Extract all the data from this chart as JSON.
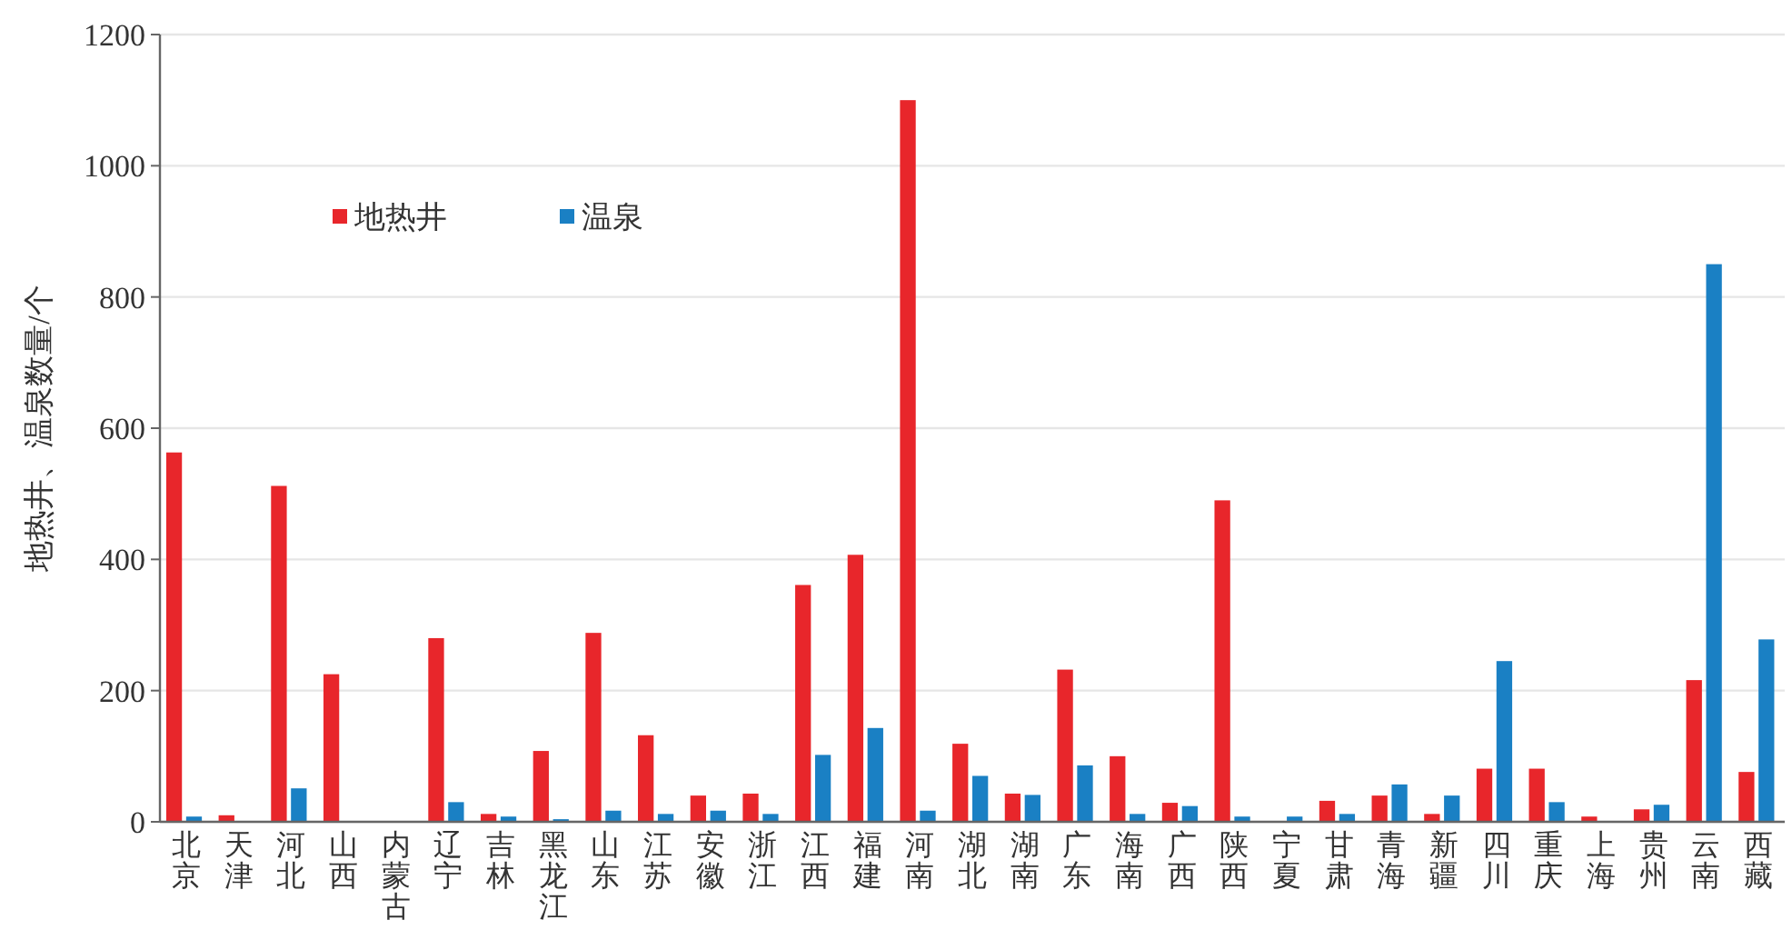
{
  "chart_data": {
    "type": "bar",
    "ylabel": "地热井、温泉数量/个",
    "categories": [
      "北京",
      "天津",
      "河北",
      "山西",
      "内蒙古",
      "辽宁",
      "吉林",
      "黑龙江",
      "山东",
      "江苏",
      "安徽",
      "浙江",
      "江西",
      "福建",
      "河南",
      "湖北",
      "湖南",
      "广东",
      "海南",
      "广西",
      "陕西",
      "宁夏",
      "甘肃",
      "青海",
      "新疆",
      "四川",
      "重庆",
      "上海",
      "贵州",
      "云南",
      "西藏"
    ],
    "series": [
      {
        "name": "地热井",
        "color": "#e8262b",
        "values": [
          563,
          10,
          512,
          225,
          0,
          280,
          12,
          108,
          288,
          132,
          40,
          43,
          361,
          407,
          1100,
          119,
          43,
          232,
          100,
          29,
          490,
          0,
          32,
          40,
          12,
          81,
          81,
          8,
          19,
          216,
          76
        ]
      },
      {
        "name": "温泉",
        "color": "#1a80c4",
        "values": [
          8,
          0,
          51,
          0,
          0,
          30,
          8,
          4,
          17,
          12,
          17,
          12,
          102,
          143,
          17,
          70,
          41,
          86,
          12,
          24,
          8,
          8,
          12,
          57,
          40,
          245,
          30,
          0,
          26,
          850,
          278
        ]
      }
    ],
    "ylim": [
      0,
      1200
    ],
    "yticks": [
      0,
      200,
      400,
      600,
      800,
      1000,
      1200
    ],
    "grid": "y",
    "legend": "top left"
  }
}
